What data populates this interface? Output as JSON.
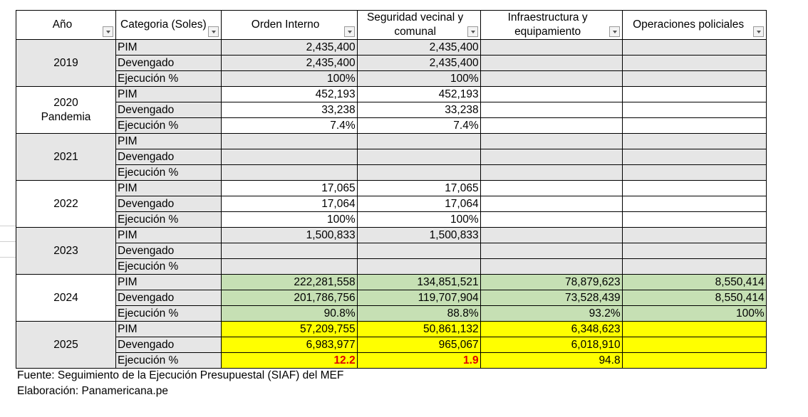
{
  "headers": {
    "year": "Año",
    "category": "Categoria (Soles)",
    "orden": "Orden Interno",
    "seguridad": "Seguridad vecinal y comunal",
    "infra": "Infraestructura y equipamiento",
    "ops": "Operaciones policiales"
  },
  "years": [
    {
      "year": "2019",
      "sub": "",
      "rows": [
        {
          "cat": "PIM",
          "orden": "2,435,400",
          "seguridad": "2,435,400",
          "infra": "",
          "ops": ""
        },
        {
          "cat": "Devengado",
          "orden": "2,435,400",
          "seguridad": "2,435,400",
          "infra": "",
          "ops": ""
        },
        {
          "cat": "Ejecución %",
          "orden": "100%",
          "seguridad": "100%",
          "infra": "",
          "ops": ""
        }
      ]
    },
    {
      "year": "2020",
      "sub": "Pandemia",
      "rows": [
        {
          "cat": "PIM",
          "orden": "452,193",
          "seguridad": "452,193",
          "infra": "",
          "ops": ""
        },
        {
          "cat": "Devengado",
          "orden": "33,238",
          "seguridad": "33,238",
          "infra": "",
          "ops": ""
        },
        {
          "cat": "Ejecución %",
          "orden": "7.4%",
          "seguridad": "7.4%",
          "infra": "",
          "ops": ""
        }
      ]
    },
    {
      "year": "2021",
      "sub": "",
      "rows": [
        {
          "cat": "PIM",
          "orden": "",
          "seguridad": "",
          "infra": "",
          "ops": ""
        },
        {
          "cat": "Devengado",
          "orden": "",
          "seguridad": "",
          "infra": "",
          "ops": ""
        },
        {
          "cat": "Ejecución %",
          "orden": "",
          "seguridad": "",
          "infra": "",
          "ops": ""
        }
      ]
    },
    {
      "year": "2022",
      "sub": "",
      "rows": [
        {
          "cat": "PIM",
          "orden": "17,065",
          "seguridad": "17,065",
          "infra": "",
          "ops": ""
        },
        {
          "cat": "Devengado",
          "orden": "17,064",
          "seguridad": "17,064",
          "infra": "",
          "ops": ""
        },
        {
          "cat": "Ejecución %",
          "orden": "100%",
          "seguridad": "100%",
          "infra": "",
          "ops": ""
        }
      ]
    },
    {
      "year": "2023",
      "sub": "",
      "rows": [
        {
          "cat": "PIM",
          "orden": "1,500,833",
          "seguridad": "1,500,833",
          "infra": "",
          "ops": ""
        },
        {
          "cat": "Devengado",
          "orden": "",
          "seguridad": "",
          "infra": "",
          "ops": ""
        },
        {
          "cat": "Ejecución %",
          "orden": "",
          "seguridad": "",
          "infra": "",
          "ops": ""
        }
      ]
    },
    {
      "year": "2024",
      "sub": "",
      "rows": [
        {
          "cat": "PIM",
          "orden": "222,281,558",
          "seguridad": "134,851,521",
          "infra": "78,879,623",
          "ops": "8,550,414"
        },
        {
          "cat": "Devengado",
          "orden": "201,786,756",
          "seguridad": "119,707,904",
          "infra": "73,528,439",
          "ops": "8,550,414"
        },
        {
          "cat": "Ejecución %",
          "orden": "90.8%",
          "seguridad": "88.8%",
          "infra": "93.2%",
          "ops": "100%"
        }
      ]
    },
    {
      "year": "2025",
      "sub": "",
      "rows": [
        {
          "cat": "PIM",
          "orden": "57,209,755",
          "seguridad": "50,861,132",
          "infra": "6,348,623",
          "ops": ""
        },
        {
          "cat": "Devengado",
          "orden": "6,983,977",
          "seguridad": "965,067",
          "infra": "6,018,910",
          "ops": ""
        },
        {
          "cat": "Ejecución %",
          "orden": "12.2",
          "seguridad": "1.9",
          "infra": "94.8",
          "ops": ""
        }
      ]
    }
  ],
  "footer": {
    "source": "Fuente: Seguimiento de la Ejecución Presupuestal (SIAF) del MEF",
    "credit": "Elaboración: Panamericana.pe"
  },
  "colors": {
    "grey": "#e6e6e6",
    "green": "#c6e0b4",
    "yellow": "#ffff00",
    "red": "#e00000"
  }
}
